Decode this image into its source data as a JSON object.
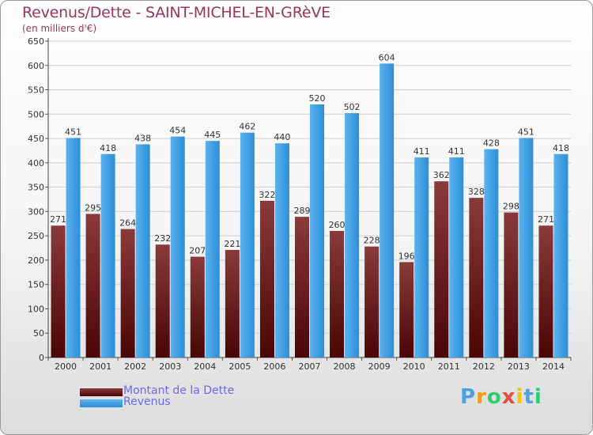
{
  "header": {
    "title": "Revenus/Dette - SAINT-MICHEL-EN-GRèVE",
    "subtitle": "(en milliers d'€)"
  },
  "legend": {
    "items": [
      {
        "label": "Montant de la Dette",
        "color": "#6e1a1a"
      },
      {
        "label": "Revenus",
        "color": "#3a9ee6"
      }
    ]
  },
  "logo": {
    "letters": [
      "P",
      "r",
      "o",
      "x",
      "i",
      "t",
      "i"
    ],
    "colors": [
      "#4aa3df",
      "#f39c12",
      "#2ecc71",
      "#e74c3c",
      "#f1c40f",
      "#4aa3df",
      "#2ecc71"
    ]
  },
  "chart_data": {
    "type": "bar",
    "categories": [
      "2000",
      "2001",
      "2002",
      "2003",
      "2004",
      "2005",
      "2006",
      "2007",
      "2008",
      "2009",
      "2010",
      "2011",
      "2012",
      "2013",
      "2014"
    ],
    "series": [
      {
        "name": "Montant de la Dette",
        "values": [
          271,
          295,
          264,
          232,
          207,
          221,
          322,
          289,
          260,
          228,
          196,
          362,
          328,
          298,
          271
        ],
        "color": "#6e1a1a"
      },
      {
        "name": "Revenus",
        "values": [
          451,
          418,
          438,
          454,
          445,
          462,
          440,
          520,
          502,
          604,
          411,
          411,
          428,
          451,
          418
        ],
        "color": "#3a9ee6"
      }
    ],
    "ylim": [
      0,
      650
    ],
    "yticks": [
      0,
      50,
      100,
      150,
      200,
      250,
      300,
      350,
      400,
      450,
      500,
      550,
      600,
      650
    ],
    "grid": true
  }
}
